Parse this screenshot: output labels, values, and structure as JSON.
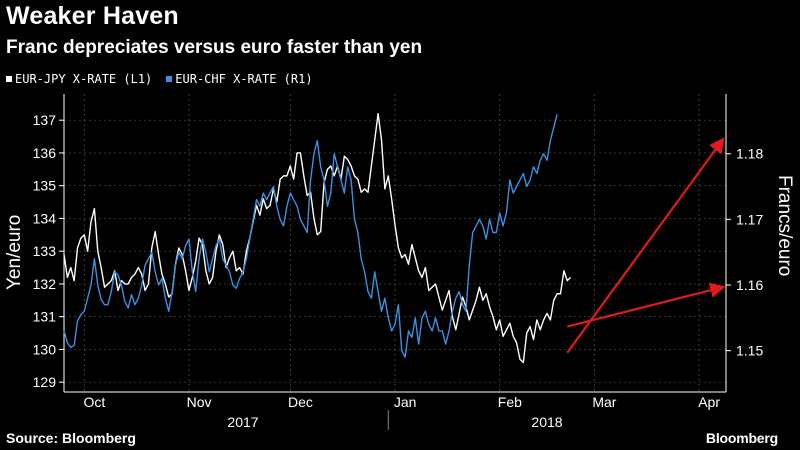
{
  "header": {
    "title": "Weaker Haven",
    "subtitle": "Franc depreciates versus euro faster than yen"
  },
  "footer": {
    "source": "Source: Bloomberg",
    "logo": "Bloomberg"
  },
  "colors": {
    "background": "#000000",
    "eur_jpy": "#ffffff",
    "eur_chf": "#3d8fe0",
    "arrows": "#e01b1b",
    "grid": "#555555"
  },
  "chart_data": {
    "type": "line",
    "title": "Weaker Haven",
    "subtitle": "Franc depreciates versus euro faster than yen",
    "legend_position": "top-left",
    "grid": true,
    "left_axis": {
      "label": "Yen/euro",
      "ylim": [
        128.7,
        137.8
      ],
      "ticks": [
        "129",
        "130",
        "131",
        "132",
        "133",
        "134",
        "135",
        "136",
        "137"
      ]
    },
    "right_axis": {
      "label": "Francs/euro",
      "ylim": [
        1.1437,
        1.1891
      ],
      "ticks": [
        "1.15",
        "1.16",
        "1.17",
        "1.18"
      ]
    },
    "x_axis": {
      "range": [
        "2017-09-25",
        "2018-04-09"
      ],
      "month_ticks": [
        {
          "label": "Oct",
          "date": "2017-10-04"
        },
        {
          "label": "Nov",
          "date": "2017-11-04"
        },
        {
          "label": "Dec",
          "date": "2017-12-04"
        },
        {
          "label": "Jan",
          "date": "2018-01-04"
        },
        {
          "label": "Feb",
          "date": "2018-02-04"
        },
        {
          "label": "Mar",
          "date": "2018-03-04"
        },
        {
          "label": "Apr",
          "date": "2018-04-04"
        }
      ],
      "year_labels": [
        {
          "label": "2017",
          "date": "2017-11-17"
        },
        {
          "label": "2018",
          "date": "2018-02-15"
        }
      ],
      "year_divider": "2017-12-30"
    },
    "series": [
      {
        "name": "EUR-JPY X-RATE (L1)",
        "axis": "left",
        "start_date": "2017-09-25",
        "step_days": 1,
        "values": [
          132.9,
          132.2,
          132.5,
          132.1,
          133.1,
          133.4,
          133.5,
          133.0,
          133.9,
          134.3,
          133.0,
          132.5,
          131.9,
          132.0,
          132.1,
          132.4,
          131.8,
          132.1,
          132.0,
          132.0,
          132.2,
          132.3,
          132.5,
          132.3,
          131.8,
          132.0,
          133.1,
          133.6,
          132.9,
          132.3,
          132.0,
          131.6,
          131.7,
          132.6,
          133.1,
          132.9,
          132.4,
          131.8,
          132.2,
          132.7,
          133.4,
          133.2,
          132.4,
          132.0,
          132.2,
          133.0,
          133.5,
          133.2,
          132.5,
          132.8,
          133.0,
          132.4,
          132.5,
          132.3,
          133.0,
          133.4,
          133.9,
          134.4,
          134.1,
          134.6,
          134.3,
          134.4,
          134.9,
          134.5,
          135.2,
          135.3,
          135.3,
          135.6,
          135.2,
          136.0,
          136.0,
          135.3,
          134.7,
          134.8,
          134.0,
          133.5,
          133.6,
          135.1,
          135.5,
          135.6,
          135.3,
          135.6,
          135.2,
          135.9,
          135.8,
          135.6,
          135.3,
          135.2,
          134.8,
          134.9,
          134.8,
          135.6,
          136.4,
          137.2,
          136.4,
          134.9,
          135.3,
          134.6,
          133.8,
          133.1,
          132.8,
          132.9,
          132.6,
          133.2,
          132.8,
          132.4,
          132.2,
          132.5,
          131.8,
          131.9,
          132.0,
          131.6,
          131.2,
          131.5,
          131.8,
          131.0,
          130.6,
          131.1,
          131.6,
          131.3,
          130.9,
          131.2,
          131.5,
          131.9,
          131.5,
          131.7,
          131.3,
          131.0,
          130.6,
          130.9,
          130.4,
          130.6,
          130.8,
          130.4,
          130.2,
          129.7,
          129.6,
          130.5,
          130.7,
          130.3,
          130.9,
          130.6,
          130.9,
          131.1,
          130.9,
          131.5,
          131.7,
          131.7,
          132.4,
          132.1,
          132.2
        ]
      },
      {
        "name": "EUR-CHF X-RATE (R1)",
        "axis": "right",
        "start_date": "2017-09-25",
        "step_days": 1,
        "values": [
          1.153,
          1.1512,
          1.1505,
          1.1508,
          1.1545,
          1.1555,
          1.156,
          1.158,
          1.16,
          1.164,
          1.16,
          1.1578,
          1.157,
          1.157,
          1.159,
          1.162,
          1.1615,
          1.16,
          1.1575,
          1.1565,
          1.1585,
          1.157,
          1.158,
          1.16,
          1.163,
          1.164,
          1.165,
          1.162,
          1.16,
          1.161,
          1.158,
          1.156,
          1.159,
          1.163,
          1.165,
          1.164,
          1.166,
          1.167,
          1.162,
          1.159,
          1.164,
          1.167,
          1.165,
          1.162,
          1.164,
          1.166,
          1.167,
          1.164,
          1.163,
          1.162,
          1.16,
          1.1595,
          1.161,
          1.162,
          1.164,
          1.167,
          1.17,
          1.173,
          1.172,
          1.174,
          1.173,
          1.174,
          1.175,
          1.172,
          1.17,
          1.169,
          1.172,
          1.174,
          1.173,
          1.172,
          1.17,
          1.169,
          1.168,
          1.176,
          1.18,
          1.182,
          1.178,
          1.176,
          1.172,
          1.174,
          1.18,
          1.178,
          1.176,
          1.174,
          1.178,
          1.176,
          1.17,
          1.168,
          1.164,
          1.162,
          1.159,
          1.158,
          1.162,
          1.159,
          1.156,
          1.158,
          1.155,
          1.153,
          1.154,
          1.157,
          1.15,
          1.149,
          1.153,
          1.152,
          1.155,
          1.151,
          1.155,
          1.156,
          1.154,
          1.153,
          1.155,
          1.153,
          1.153,
          1.151,
          1.153,
          1.156,
          1.158,
          1.159,
          1.157,
          1.156,
          1.163,
          1.168,
          1.169,
          1.17,
          1.169,
          1.167,
          1.17,
          1.168,
          1.168,
          1.171,
          1.169,
          1.171,
          1.176,
          1.174,
          1.175,
          1.176,
          1.177,
          1.175,
          1.176,
          1.178,
          1.177,
          1.179,
          1.18,
          1.179,
          1.182,
          1.184,
          1.186
        ]
      }
    ],
    "annotations": [
      {
        "type": "arrow",
        "axis": "left",
        "from": {
          "date": "2018-02-21",
          "value": 129.9
        },
        "to": {
          "date": "2018-04-08",
          "value": 136.4
        }
      },
      {
        "type": "arrow",
        "axis": "left",
        "from": {
          "date": "2018-02-21",
          "value": 130.7
        },
        "to": {
          "date": "2018-04-08",
          "value": 131.9
        }
      }
    ]
  }
}
